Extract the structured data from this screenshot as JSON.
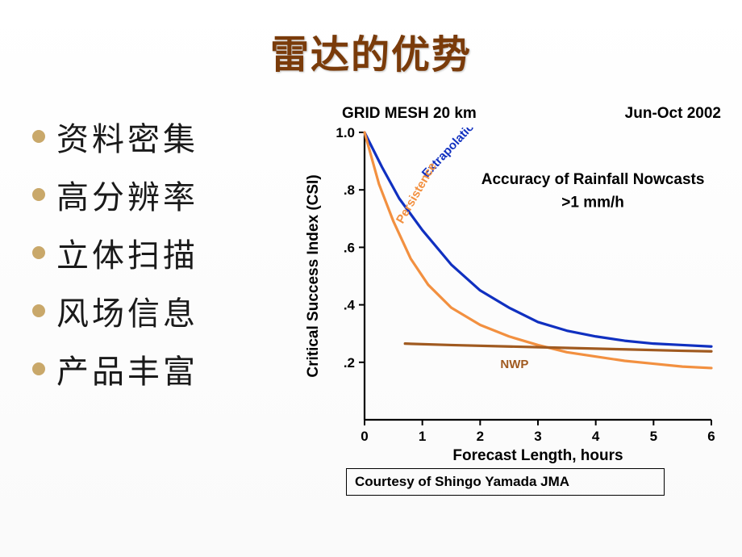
{
  "title": "雷达的优势",
  "bullets": [
    "资料密集",
    "高分辨率",
    "立体扫描",
    "风场信息",
    "产品丰富"
  ],
  "bullet_color": "#c9a86a",
  "title_color": "#7a3b0a",
  "chart": {
    "type": "line",
    "header_left": "GRID MESH 20 km",
    "header_right": "Jun-Oct 2002",
    "inner_title_line1": "Accuracy of Rainfall Nowcasts",
    "inner_title_line2": ">1 mm/h",
    "ylabel": "Critical Success Index (CSI)",
    "xlabel": "Forecast Length, hours",
    "credit": "Courtesy of  Shingo Yamada JMA",
    "xlim": [
      0,
      6
    ],
    "ylim": [
      0,
      1.0
    ],
    "xticks": [
      0,
      1,
      2,
      3,
      4,
      5,
      6
    ],
    "yticks": [
      0.2,
      0.4,
      0.6,
      0.8,
      1.0
    ],
    "ytick_labels": [
      ".2",
      ".4",
      ".6",
      ".8",
      "1.0"
    ],
    "background_color": "#ffffff",
    "axis_color": "#000000",
    "line_width": 3.2,
    "label_fontsize": 19,
    "tick_fontsize": 17,
    "inner_title_fontsize": 19,
    "series_label_fontsize": 15,
    "series": [
      {
        "name": "Extrapolation",
        "color": "#1030c0",
        "label_rotation": -47,
        "label_x": 1.08,
        "label_y": 0.84,
        "points": [
          [
            0,
            1.0
          ],
          [
            0.3,
            0.88
          ],
          [
            0.6,
            0.77
          ],
          [
            1.0,
            0.66
          ],
          [
            1.5,
            0.54
          ],
          [
            2.0,
            0.45
          ],
          [
            2.5,
            0.39
          ],
          [
            3.0,
            0.34
          ],
          [
            3.5,
            0.31
          ],
          [
            4.0,
            0.29
          ],
          [
            4.5,
            0.275
          ],
          [
            5.0,
            0.265
          ],
          [
            5.5,
            0.26
          ],
          [
            6.0,
            0.255
          ]
        ]
      },
      {
        "name": "Persistence",
        "color": "#f29040",
        "label_rotation": -60,
        "label_x": 0.66,
        "label_y": 0.68,
        "points": [
          [
            0,
            1.0
          ],
          [
            0.25,
            0.82
          ],
          [
            0.5,
            0.69
          ],
          [
            0.8,
            0.56
          ],
          [
            1.1,
            0.47
          ],
          [
            1.5,
            0.39
          ],
          [
            2.0,
            0.33
          ],
          [
            2.5,
            0.29
          ],
          [
            3.0,
            0.26
          ],
          [
            3.5,
            0.235
          ],
          [
            4.0,
            0.22
          ],
          [
            4.5,
            0.205
          ],
          [
            5.0,
            0.195
          ],
          [
            5.5,
            0.185
          ],
          [
            6.0,
            0.18
          ]
        ]
      },
      {
        "name": "NWP",
        "color": "#a05a20",
        "label_rotation": 0,
        "label_x": 2.35,
        "label_y": 0.18,
        "points": [
          [
            0.7,
            0.265
          ],
          [
            1.5,
            0.26
          ],
          [
            2.5,
            0.255
          ],
          [
            3.5,
            0.25
          ],
          [
            4.5,
            0.245
          ],
          [
            5.5,
            0.24
          ],
          [
            6.0,
            0.238
          ]
        ]
      }
    ]
  }
}
